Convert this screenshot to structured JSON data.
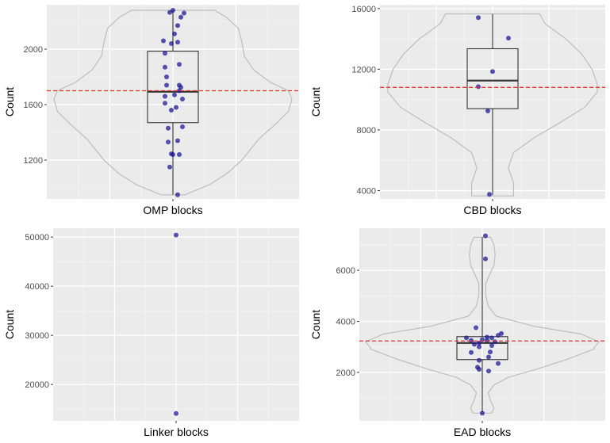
{
  "colors": {
    "panel_bg": "#ebebeb",
    "grid_major": "#ffffff",
    "violin_stroke": "#bdbdbd",
    "box_stroke": "#333333",
    "point_fill": "#1f1a96",
    "mean_line": "#e8302a"
  },
  "chart_data": [
    {
      "type": "violin-box",
      "xlabel": "OMP blocks",
      "ylabel": "Count",
      "ylim": [
        920,
        2320
      ],
      "yticks": [
        1200,
        1600,
        2000
      ],
      "tick_labels": [
        "1200",
        "1600",
        "2000"
      ],
      "mean": 1700,
      "box": {
        "min": 950,
        "q1": 1470,
        "median": 1693,
        "q3": 1985,
        "max": 2280
      },
      "violin_profile": [
        [
          950,
          0.1
        ],
        [
          1020,
          0.3
        ],
        [
          1100,
          0.45
        ],
        [
          1200,
          0.58
        ],
        [
          1350,
          0.72
        ],
        [
          1450,
          0.85
        ],
        [
          1550,
          0.97
        ],
        [
          1640,
          1.0
        ],
        [
          1700,
          0.97
        ],
        [
          1760,
          0.82
        ],
        [
          1850,
          0.68
        ],
        [
          1950,
          0.6
        ],
        [
          2050,
          0.58
        ],
        [
          2150,
          0.55
        ],
        [
          2230,
          0.45
        ],
        [
          2280,
          0.35
        ]
      ],
      "points": [
        [
          0.03,
          950
        ],
        [
          -0.02,
          1150
        ],
        [
          0.0,
          1240
        ],
        [
          0.04,
          1240
        ],
        [
          -0.01,
          1245
        ],
        [
          0.03,
          1340
        ],
        [
          -0.03,
          1330
        ],
        [
          0.06,
          1440
        ],
        [
          -0.03,
          1430
        ],
        [
          -0.01,
          1560
        ],
        [
          0.02,
          1580
        ],
        [
          -0.05,
          1610
        ],
        [
          0.06,
          1640
        ],
        [
          -0.05,
          1660
        ],
        [
          0.01,
          1670
        ],
        [
          0.04,
          1700
        ],
        [
          0.05,
          1725
        ],
        [
          0.04,
          1740
        ],
        [
          -0.04,
          1740
        ],
        [
          -0.04,
          1800
        ],
        [
          0.04,
          1890
        ],
        [
          -0.05,
          1870
        ],
        [
          -0.05,
          1970
        ],
        [
          -0.01,
          2040
        ],
        [
          0.03,
          2050
        ],
        [
          -0.06,
          2060
        ],
        [
          0.01,
          2110
        ],
        [
          0.03,
          2170
        ],
        [
          0.05,
          2230
        ],
        [
          0.07,
          2260
        ],
        [
          -0.02,
          2265
        ],
        [
          0.0,
          2280
        ]
      ]
    },
    {
      "type": "violin-box",
      "xlabel": "CBD blocks",
      "ylabel": "Count",
      "ylim": [
        3450,
        16250
      ],
      "yticks": [
        4000,
        8000,
        12000,
        16000
      ],
      "tick_labels": [
        "4000",
        "8000",
        "12000",
        "16000"
      ],
      "mean": 10800,
      "box": {
        "min": 3700,
        "q1": 9400,
        "median": 11250,
        "q3": 13350,
        "max": 15650
      },
      "violin_profile": [
        [
          3650,
          0.2
        ],
        [
          4500,
          0.2
        ],
        [
          5500,
          0.15
        ],
        [
          6500,
          0.2
        ],
        [
          7500,
          0.4
        ],
        [
          8500,
          0.65
        ],
        [
          9500,
          0.88
        ],
        [
          10500,
          1.0
        ],
        [
          11000,
          1.0
        ],
        [
          12000,
          0.95
        ],
        [
          13000,
          0.85
        ],
        [
          14000,
          0.7
        ],
        [
          15000,
          0.5
        ],
        [
          15650,
          0.45
        ]
      ],
      "points": [
        [
          -0.02,
          3750
        ],
        [
          -0.03,
          9250
        ],
        [
          -0.09,
          10850
        ],
        [
          0.0,
          11850
        ],
        [
          0.1,
          14050
        ],
        [
          -0.09,
          15400
        ]
      ]
    },
    {
      "type": "violin-box",
      "xlabel": "Linker blocks",
      "ylabel": "Count",
      "ylim": [
        12600,
        51800
      ],
      "yticks": [
        20000,
        30000,
        40000,
        50000
      ],
      "tick_labels": [
        "20000",
        "30000",
        "40000",
        "50000"
      ],
      "mean": null,
      "box": null,
      "violin_profile": [],
      "points": [
        [
          0.0,
          14100
        ],
        [
          0.0,
          50400
        ]
      ]
    },
    {
      "type": "violin-box",
      "xlabel": "EAD blocks",
      "ylabel": "Count",
      "ylim": [
        100,
        7650
      ],
      "yticks": [
        2000,
        4000,
        6000
      ],
      "tick_labels": [
        "2000",
        "4000",
        "6000"
      ],
      "mean": 3230,
      "box": {
        "min": 400,
        "q1": 2500,
        "median": 3150,
        "q3": 3400,
        "max": 7300
      },
      "violin_profile": [
        [
          400,
          0.08
        ],
        [
          600,
          0.1
        ],
        [
          900,
          0.07
        ],
        [
          1200,
          0.05
        ],
        [
          1500,
          0.1
        ],
        [
          1800,
          0.22
        ],
        [
          2100,
          0.45
        ],
        [
          2500,
          0.72
        ],
        [
          2900,
          0.95
        ],
        [
          3200,
          1.0
        ],
        [
          3500,
          0.85
        ],
        [
          3800,
          0.45
        ],
        [
          4200,
          0.12
        ],
        [
          4600,
          0.05
        ],
        [
          5000,
          0.03
        ],
        [
          5500,
          0.03
        ],
        [
          5800,
          0.06
        ],
        [
          6200,
          0.1
        ],
        [
          6600,
          0.11
        ],
        [
          7000,
          0.1
        ],
        [
          7300,
          0.07
        ]
      ],
      "points": [
        [
          0.0,
          400
        ],
        [
          0.04,
          2050
        ],
        [
          -0.02,
          2120
        ],
        [
          -0.03,
          2200
        ],
        [
          0.1,
          2350
        ],
        [
          -0.02,
          2470
        ],
        [
          0.04,
          2600
        ],
        [
          -0.07,
          2780
        ],
        [
          0.05,
          2800
        ],
        [
          -0.02,
          3000
        ],
        [
          0.06,
          3050
        ],
        [
          -0.05,
          3100
        ],
        [
          -0.02,
          3150
        ],
        [
          0.08,
          3200
        ],
        [
          0.03,
          3250
        ],
        [
          -0.07,
          3250
        ],
        [
          0.0,
          3280
        ],
        [
          -0.1,
          3350
        ],
        [
          0.06,
          3350
        ],
        [
          0.03,
          3380
        ],
        [
          0.1,
          3450
        ],
        [
          0.12,
          3520
        ],
        [
          -0.04,
          3750
        ],
        [
          0.02,
          6450
        ],
        [
          0.02,
          7350
        ]
      ]
    }
  ]
}
